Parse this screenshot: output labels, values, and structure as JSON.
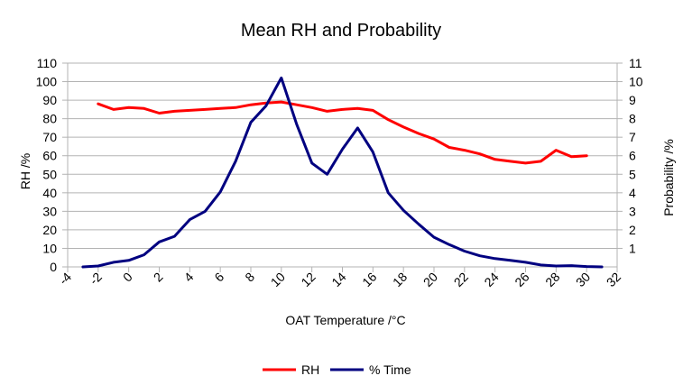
{
  "chart_data": {
    "type": "line",
    "title": "Mean RH and Probability",
    "xlabel": "OAT Temperature /°C",
    "ylabel": "RH /%",
    "y2label": "Probability /%",
    "xlim": [
      -4,
      32
    ],
    "ylim": [
      0,
      110
    ],
    "y2lim": [
      0,
      11
    ],
    "x_ticks": [
      -4,
      -2,
      0,
      2,
      4,
      6,
      8,
      10,
      12,
      14,
      16,
      18,
      20,
      22,
      24,
      26,
      28,
      30,
      32
    ],
    "y_ticks": [
      0,
      10,
      20,
      30,
      40,
      50,
      60,
      70,
      80,
      90,
      100,
      110
    ],
    "y2_ticks": [
      1,
      2,
      3,
      4,
      5,
      6,
      7,
      8,
      9,
      10,
      11
    ],
    "grid": "horizontal",
    "legend_position": "bottom",
    "series": [
      {
        "name": "RH",
        "axis": "left",
        "color": "#ff0000",
        "x": [
          -2,
          -1,
          0,
          1,
          2,
          3,
          4,
          5,
          6,
          7,
          8,
          9,
          10,
          11,
          12,
          13,
          14,
          15,
          16,
          17,
          18,
          19,
          20,
          21,
          22,
          23,
          24,
          25,
          26,
          27,
          28,
          29,
          30
        ],
        "y": [
          88,
          85,
          86,
          85.5,
          83,
          84,
          84.5,
          85,
          85.5,
          86,
          87.5,
          88.5,
          89,
          87.5,
          86,
          84,
          85,
          85.5,
          84.5,
          79.5,
          75.5,
          72,
          69,
          64.5,
          63,
          61,
          58,
          57,
          56,
          57,
          63,
          59.5,
          60
        ]
      },
      {
        "name": "% Time",
        "axis": "right",
        "color": "#000080",
        "x": [
          -3,
          -2,
          -1,
          0,
          1,
          2,
          3,
          4,
          5,
          6,
          7,
          8,
          9,
          10,
          11,
          12,
          13,
          14,
          15,
          16,
          17,
          18,
          19,
          20,
          21,
          22,
          23,
          24,
          25,
          26,
          27,
          28,
          29,
          30,
          31
        ],
        "y": [
          0,
          0.05,
          0.25,
          0.35,
          0.65,
          1.35,
          1.65,
          2.55,
          3.0,
          4.05,
          5.7,
          7.8,
          8.7,
          10.2,
          7.7,
          5.6,
          5.0,
          6.35,
          7.5,
          6.2,
          4.0,
          3.05,
          2.3,
          1.6,
          1.2,
          0.85,
          0.6,
          0.45,
          0.35,
          0.25,
          0.1,
          0.05,
          0.07,
          0.02,
          0
        ]
      }
    ]
  }
}
